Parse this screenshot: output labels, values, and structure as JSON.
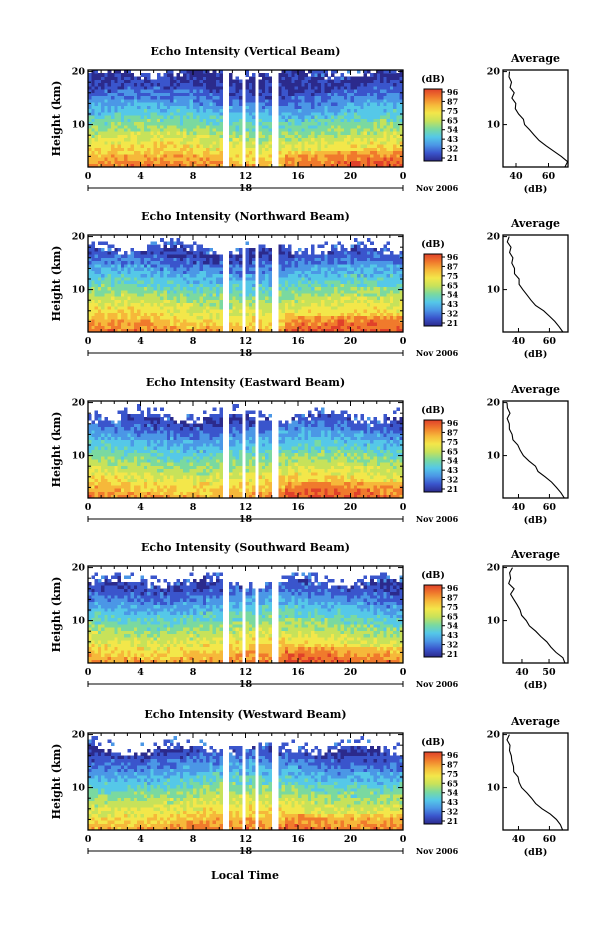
{
  "chart_data": {
    "type": "heatmap",
    "colorbar": {
      "unit": "(dB)",
      "ticks": [
        "96",
        "87",
        "75",
        "65",
        "54",
        "43",
        "32",
        "21"
      ],
      "colors": [
        "#2b2a8c",
        "#3a55cc",
        "#4b97e6",
        "#55c8e8",
        "#7ad9a0",
        "#c7e25a",
        "#f3e74a",
        "#f6b83a",
        "#f07a2c",
        "#e0412a"
      ]
    },
    "date_label": "Nov 2006",
    "xlabel": "Local Time",
    "xticks": [
      "0",
      "4",
      "8",
      "12",
      "16",
      "20",
      "0"
    ],
    "day_label": "18",
    "ylabel": "Height (km)",
    "yticks": [
      "10",
      "20"
    ],
    "avg_title": "Average",
    "avg_xlabel": "(dB)",
    "gaps_hours": [
      [
        10.3,
        10.8
      ],
      [
        11.7,
        12.1
      ],
      [
        12.7,
        13.0
      ],
      [
        13.9,
        14.6
      ]
    ],
    "panels": [
      {
        "title": "Echo Intensity (Vertical Beam)",
        "cutoff_km": 19.5,
        "avg_xticks": [
          "40",
          "60"
        ],
        "avg_xlim": [
          32,
          72
        ],
        "avg_profile": [
          {
            "h": 2,
            "db": 70
          },
          {
            "h": 3,
            "db": 71
          },
          {
            "h": 4,
            "db": 67
          },
          {
            "h": 5,
            "db": 63
          },
          {
            "h": 6,
            "db": 59
          },
          {
            "h": 7,
            "db": 55
          },
          {
            "h": 8,
            "db": 52
          },
          {
            "h": 9,
            "db": 49
          },
          {
            "h": 10,
            "db": 46
          },
          {
            "h": 11,
            "db": 44
          },
          {
            "h": 12,
            "db": 42
          },
          {
            "h": 13,
            "db": 40
          },
          {
            "h": 14,
            "db": 39
          },
          {
            "h": 15,
            "db": 37
          },
          {
            "h": 16,
            "db": 38
          },
          {
            "h": 17,
            "db": 36
          },
          {
            "h": 18,
            "db": 37
          },
          {
            "h": 19,
            "db": 35
          },
          {
            "h": 20,
            "db": 36
          }
        ]
      },
      {
        "title": "Echo Intensity (Northward Beam)",
        "cutoff_km": 17.5,
        "avg_xticks": [
          "40",
          "60"
        ],
        "avg_xlim": [
          30,
          72
        ],
        "avg_profile": [
          {
            "h": 2,
            "db": 68
          },
          {
            "h": 3,
            "db": 67
          },
          {
            "h": 4,
            "db": 63
          },
          {
            "h": 5,
            "db": 60
          },
          {
            "h": 6,
            "db": 56
          },
          {
            "h": 7,
            "db": 52
          },
          {
            "h": 8,
            "db": 49
          },
          {
            "h": 9,
            "db": 46
          },
          {
            "h": 10,
            "db": 43
          },
          {
            "h": 11,
            "db": 41
          },
          {
            "h": 12,
            "db": 40
          },
          {
            "h": 13,
            "db": 38
          },
          {
            "h": 14,
            "db": 37
          },
          {
            "h": 15,
            "db": 35
          },
          {
            "h": 16,
            "db": 36
          },
          {
            "h": 17,
            "db": 34
          },
          {
            "h": 18,
            "db": 35
          },
          {
            "h": 19,
            "db": 33
          },
          {
            "h": 20,
            "db": 34
          }
        ]
      },
      {
        "title": "Echo Intensity (Eastward Beam)",
        "cutoff_km": 17.0,
        "avg_xticks": [
          "40",
          "60"
        ],
        "avg_xlim": [
          30,
          72
        ],
        "avg_profile": [
          {
            "h": 2,
            "db": 69
          },
          {
            "h": 3,
            "db": 68
          },
          {
            "h": 4,
            "db": 64
          },
          {
            "h": 5,
            "db": 61
          },
          {
            "h": 6,
            "db": 57
          },
          {
            "h": 7,
            "db": 53
          },
          {
            "h": 8,
            "db": 50
          },
          {
            "h": 9,
            "db": 46
          },
          {
            "h": 10,
            "db": 43
          },
          {
            "h": 11,
            "db": 41
          },
          {
            "h": 12,
            "db": 39
          },
          {
            "h": 13,
            "db": 37
          },
          {
            "h": 14,
            "db": 36
          },
          {
            "h": 15,
            "db": 34
          },
          {
            "h": 16,
            "db": 35
          },
          {
            "h": 17,
            "db": 33
          },
          {
            "h": 18,
            "db": 34
          },
          {
            "h": 19,
            "db": 32
          },
          {
            "h": 20,
            "db": 33
          }
        ]
      },
      {
        "title": "Echo Intensity (Southward Beam)",
        "cutoff_km": 17.0,
        "avg_xticks": [
          "40",
          "50"
        ],
        "avg_xlim": [
          33,
          57
        ],
        "avg_profile": [
          {
            "h": 2,
            "db": 56
          },
          {
            "h": 3,
            "db": 55
          },
          {
            "h": 4,
            "db": 53
          },
          {
            "h": 5,
            "db": 51
          },
          {
            "h": 6,
            "db": 49
          },
          {
            "h": 7,
            "db": 47
          },
          {
            "h": 8,
            "db": 45
          },
          {
            "h": 9,
            "db": 43
          },
          {
            "h": 10,
            "db": 42
          },
          {
            "h": 11,
            "db": 40
          },
          {
            "h": 12,
            "db": 39
          },
          {
            "h": 13,
            "db": 38
          },
          {
            "h": 14,
            "db": 37
          },
          {
            "h": 15,
            "db": 36
          },
          {
            "h": 16,
            "db": 37
          },
          {
            "h": 17,
            "db": 35
          },
          {
            "h": 18,
            "db": 36
          },
          {
            "h": 19,
            "db": 35
          },
          {
            "h": 20,
            "db": 36
          }
        ]
      },
      {
        "title": "Echo Intensity (Westward Beam)",
        "cutoff_km": 17.0,
        "avg_xticks": [
          "40",
          "60"
        ],
        "avg_xlim": [
          30,
          72
        ],
        "avg_profile": [
          {
            "h": 2,
            "db": 69
          },
          {
            "h": 3,
            "db": 68
          },
          {
            "h": 4,
            "db": 64
          },
          {
            "h": 5,
            "db": 60
          },
          {
            "h": 6,
            "db": 56
          },
          {
            "h": 7,
            "db": 52
          },
          {
            "h": 8,
            "db": 49
          },
          {
            "h": 9,
            "db": 45
          },
          {
            "h": 10,
            "db": 42
          },
          {
            "h": 11,
            "db": 40
          },
          {
            "h": 12,
            "db": 39
          },
          {
            "h": 13,
            "db": 37
          },
          {
            "h": 14,
            "db": 36
          },
          {
            "h": 15,
            "db": 35
          },
          {
            "h": 16,
            "db": 36
          },
          {
            "h": 17,
            "db": 34
          },
          {
            "h": 18,
            "db": 35
          },
          {
            "h": 19,
            "db": 33
          },
          {
            "h": 20,
            "db": 34
          }
        ]
      }
    ]
  }
}
